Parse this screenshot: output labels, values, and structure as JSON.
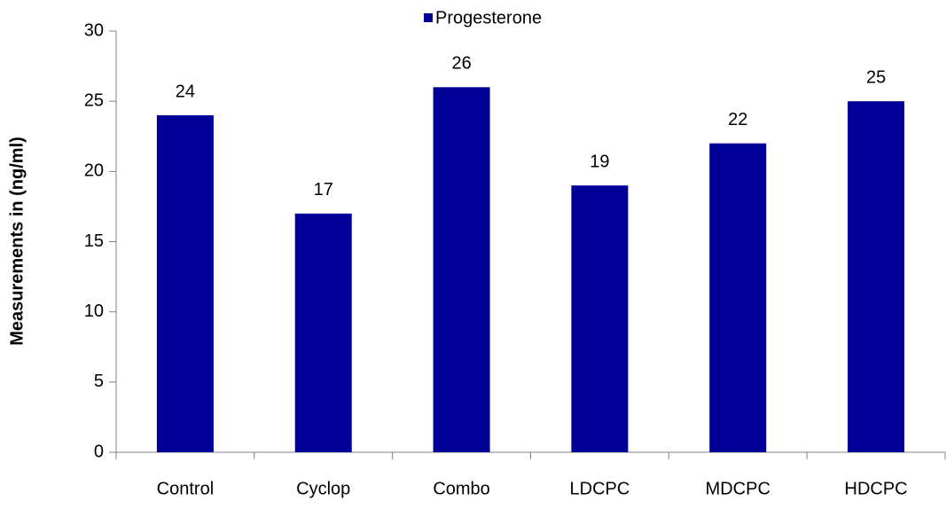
{
  "chart_data": {
    "type": "bar",
    "ylabel": "Measurements in (ng/ml)",
    "categories": [
      "Control",
      "Cyclop",
      "Combo",
      "LDCPC",
      "MDCPC",
      "HDCPC"
    ],
    "series": [
      {
        "name": "Progesterone",
        "color": "#000099",
        "values": [
          24,
          17,
          26,
          19,
          22,
          25
        ]
      }
    ],
    "ylim": [
      0,
      30
    ],
    "yticks": [
      0,
      5,
      10,
      15,
      20,
      25,
      30
    ],
    "grid": false,
    "legend": "top"
  }
}
